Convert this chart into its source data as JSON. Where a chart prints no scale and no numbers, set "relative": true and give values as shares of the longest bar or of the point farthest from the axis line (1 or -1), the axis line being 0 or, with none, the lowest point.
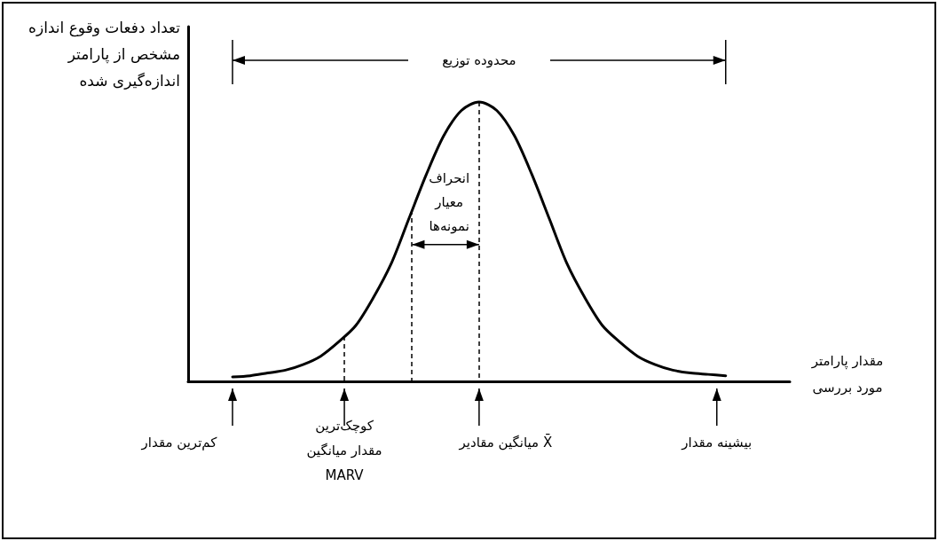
{
  "chart_data": {
    "type": "line",
    "relative": true,
    "title": "محدوده توزیع",
    "ylabel": "تعداد دفعات وقوع اندازه مشخص از پارامتر اندازه‌گیری شده",
    "categories": [
      null,
      null,
      null,
      null,
      null,
      null,
      null,
      null,
      null,
      null,
      null,
      null,
      null,
      null,
      null,
      null,
      null,
      null,
      null,
      null,
      null,
      null,
      null,
      null,
      null,
      null,
      null,
      null,
      null
    ],
    "values": [
      0.016,
      0.02,
      0.03,
      0.04,
      0.06,
      0.09,
      0.14,
      0.2,
      0.3,
      0.42,
      0.58,
      0.74,
      0.88,
      0.97,
      1,
      0.97,
      0.88,
      0.74,
      0.58,
      0.42,
      0.3,
      0.2,
      0.14,
      0.09,
      0.06,
      0.04,
      0.03,
      0.025,
      0.02
    ],
    "color": "#000000",
    "marker": "none",
    "line_style": "solid",
    "grid": false,
    "annotations": [
      "کم‌ترین مقدار",
      "کوچک‌ترین مقدار میانگین MARV",
      "X̄ میانگین مقادیر",
      "بیشینه مقدار",
      "انحراف معیار نمونه‌ها",
      "مقدار پارامتر مورد بررسی"
    ]
  }
}
